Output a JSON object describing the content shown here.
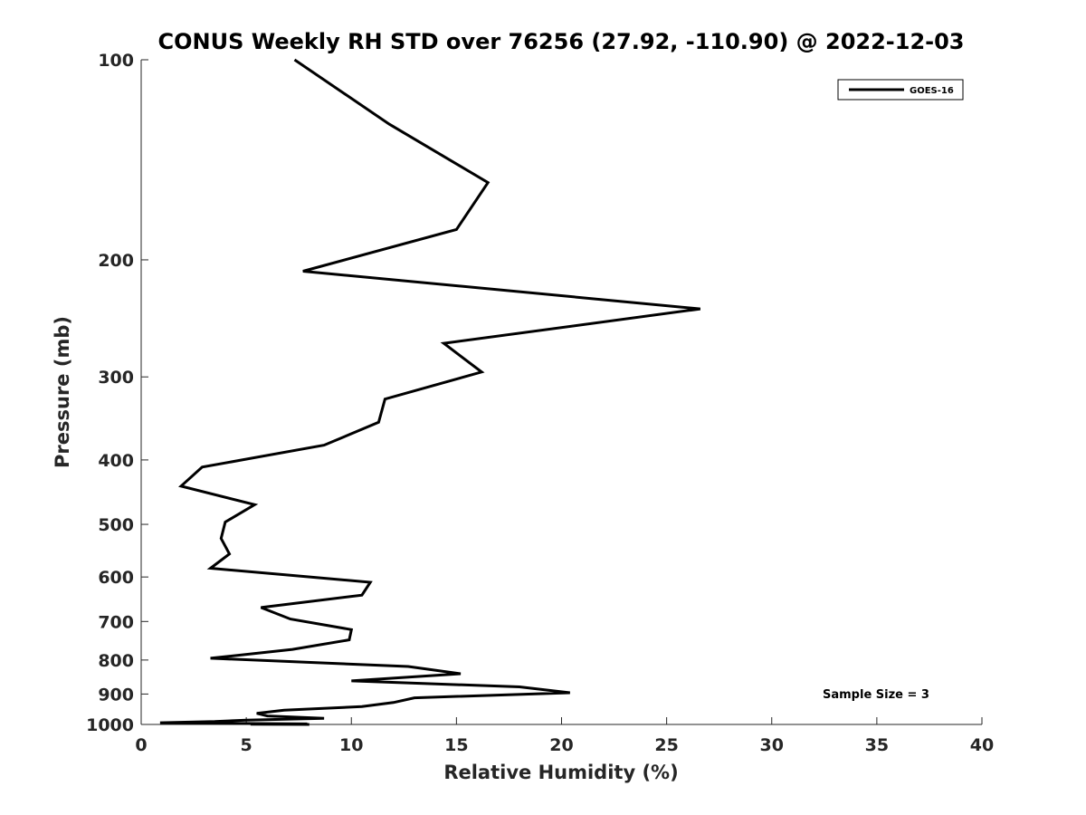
{
  "chart_data": {
    "type": "line",
    "title": "CONUS Weekly RH STD over 76256 (27.92, -110.90) @ 2022-12-03",
    "xlabel": "Relative Humidity (%)",
    "ylabel": "Pressure (mb)",
    "xlim": [
      0,
      40
    ],
    "ylim": [
      100,
      1000
    ],
    "y_scale": "log",
    "y_reversed": true,
    "x_ticks": [
      0,
      5,
      10,
      15,
      20,
      25,
      30,
      35,
      40
    ],
    "x_tick_labels": [
      "0",
      "5",
      "10",
      "15",
      "20",
      "25",
      "30",
      "35",
      "40"
    ],
    "y_ticks": [
      100,
      200,
      300,
      400,
      500,
      600,
      700,
      800,
      900,
      1000
    ],
    "y_tick_labels": [
      "100",
      "200",
      "300",
      "400",
      "500",
      "600",
      "700",
      "800",
      "900",
      "1000"
    ],
    "grid": false,
    "legend_position": "top-right",
    "series_color": "#000000",
    "series": [
      {
        "name": "GOES-16",
        "points": [
          [
            7.3,
            100
          ],
          [
            11.8,
            125
          ],
          [
            16.5,
            153
          ],
          [
            15.0,
            180
          ],
          [
            7.7,
            208
          ],
          [
            26.6,
            237
          ],
          [
            14.4,
            267
          ],
          [
            16.2,
            295
          ],
          [
            11.6,
            324
          ],
          [
            11.3,
            351
          ],
          [
            8.7,
            380
          ],
          [
            2.9,
            410
          ],
          [
            1.9,
            438
          ],
          [
            5.4,
            467
          ],
          [
            4.0,
            496
          ],
          [
            3.8,
            525
          ],
          [
            4.2,
            554
          ],
          [
            3.3,
            582
          ],
          [
            10.9,
            611
          ],
          [
            10.5,
            639
          ],
          [
            5.7,
            667
          ],
          [
            7.1,
            694
          ],
          [
            10.0,
            720
          ],
          [
            9.9,
            746
          ],
          [
            7.2,
            771
          ],
          [
            3.3,
            795
          ],
          [
            12.7,
            818
          ],
          [
            15.2,
            839
          ],
          [
            10.0,
            860
          ],
          [
            18.0,
            878
          ],
          [
            20.4,
            896
          ],
          [
            13.0,
            912
          ],
          [
            12.0,
            927
          ],
          [
            10.5,
            940
          ],
          [
            6.8,
            952
          ],
          [
            5.5,
            962
          ],
          [
            6.0,
            971
          ],
          [
            8.7,
            979
          ],
          [
            5.0,
            985
          ],
          [
            3.5,
            990
          ],
          [
            0.9,
            994
          ],
          [
            5.5,
            997
          ],
          [
            7.9,
            998
          ],
          [
            5.2,
            999
          ],
          [
            8.0,
            1000
          ]
        ]
      }
    ],
    "annotation": "Sample Size = 3"
  }
}
